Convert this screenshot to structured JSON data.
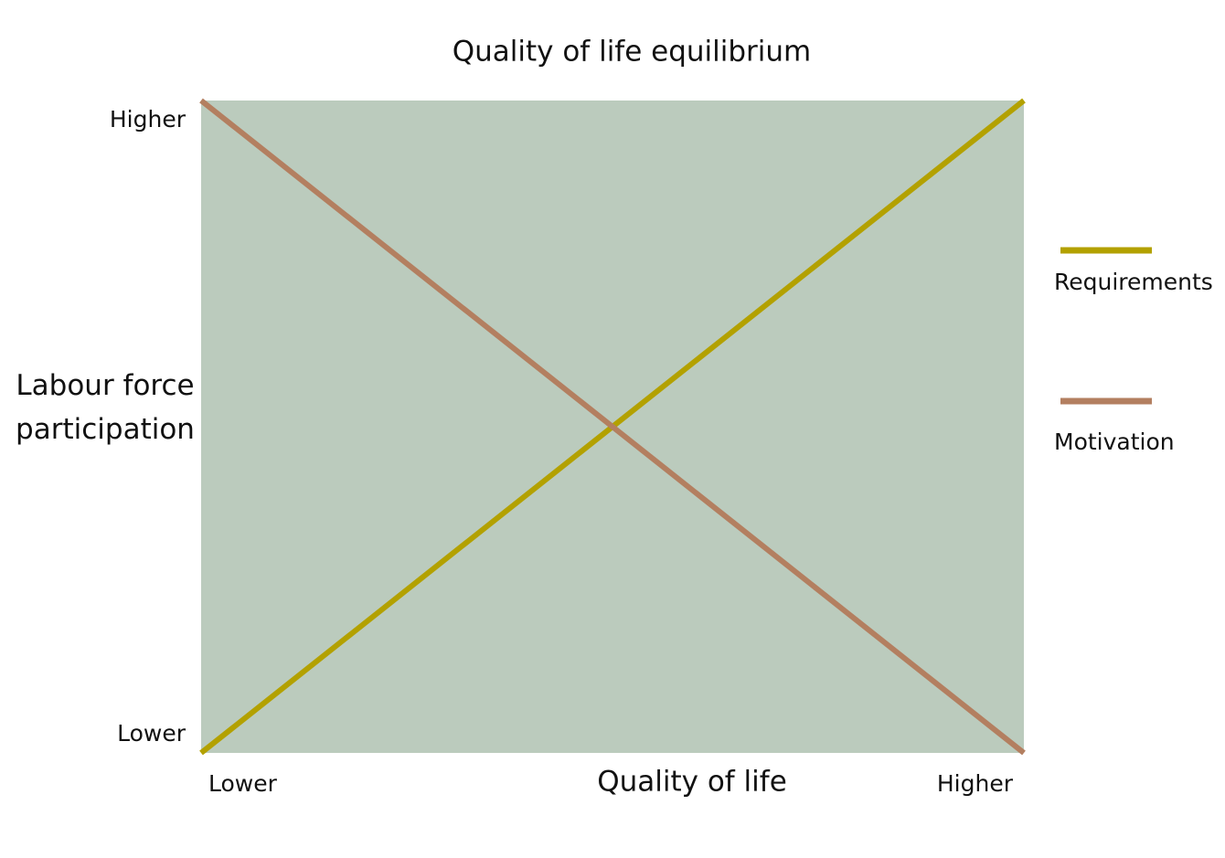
{
  "chart_data": {
    "type": "line",
    "title": "Quality of life equilibrium",
    "x_label": "Quality of life",
    "y_label": "Labour force participation",
    "x": [
      0,
      1
    ],
    "series": [
      {
        "name": "Requirements",
        "color": "#b3a100",
        "values": [
          0,
          1
        ]
      },
      {
        "name": "Motivation",
        "color": "#b37f60",
        "values": [
          1,
          0
        ]
      }
    ],
    "xlim": [
      0,
      1
    ],
    "ylim": [
      0,
      1
    ],
    "xticks": [
      {
        "value": 0,
        "label": "Lower"
      },
      {
        "value": 1,
        "label": "Higher"
      }
    ],
    "yticks": [
      {
        "value": 0,
        "label": "Lower"
      },
      {
        "value": 1,
        "label": "Higher"
      }
    ],
    "background": "#bbcbbd",
    "legend": "right"
  }
}
